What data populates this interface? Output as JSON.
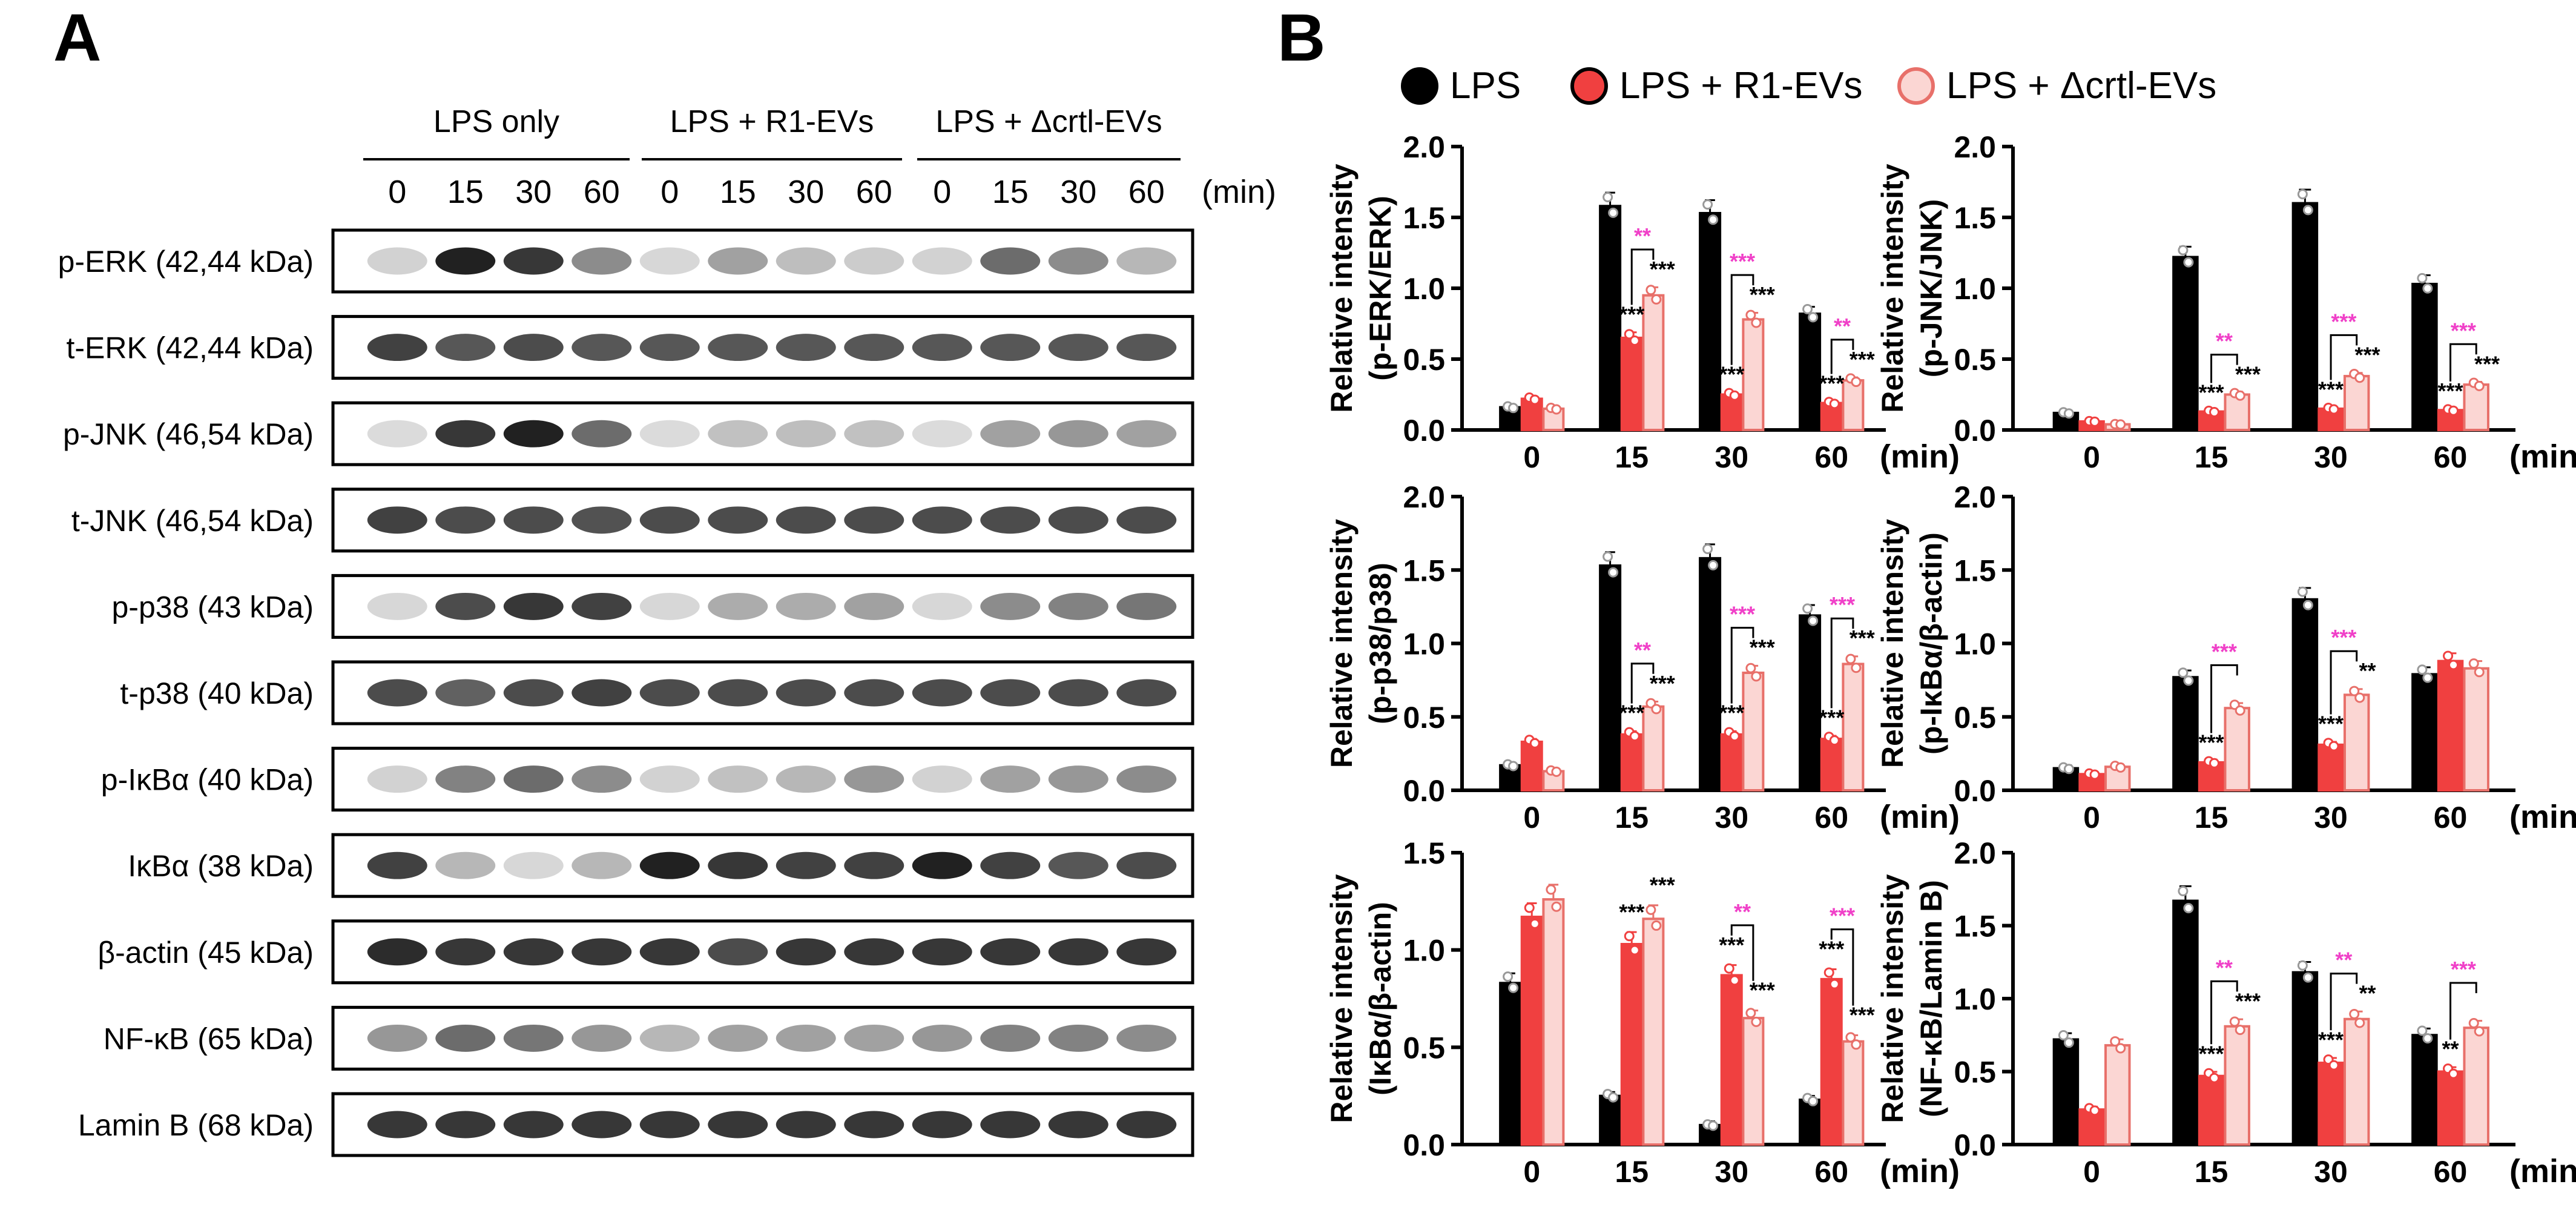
{
  "panel_a": {
    "letter": "A",
    "groups": [
      "LPS only",
      "LPS + R1-EVs",
      "LPS + Δcrtl-EVs"
    ],
    "times": [
      "0",
      "15",
      "30",
      "60"
    ],
    "time_unit": "(min)",
    "blots": [
      {
        "label": "p-ERK (42,44 kDa)",
        "intensity": [
          0.12,
          0.95,
          0.85,
          0.45,
          0.1,
          0.35,
          0.22,
          0.15,
          0.12,
          0.6,
          0.45,
          0.25
        ]
      },
      {
        "label": "t-ERK (42,44 kDa)",
        "intensity": [
          0.8,
          0.7,
          0.75,
          0.7,
          0.7,
          0.7,
          0.7,
          0.7,
          0.7,
          0.7,
          0.7,
          0.7
        ]
      },
      {
        "label": "p-JNK (46,54 kDa)",
        "intensity": [
          0.08,
          0.85,
          0.95,
          0.6,
          0.08,
          0.2,
          0.22,
          0.2,
          0.08,
          0.35,
          0.4,
          0.35
        ]
      },
      {
        "label": "t-JNK (46,54 kDa)",
        "intensity": [
          0.8,
          0.75,
          0.75,
          0.72,
          0.75,
          0.75,
          0.75,
          0.75,
          0.75,
          0.75,
          0.75,
          0.75
        ]
      },
      {
        "label": "p-p38 (43 kDa)",
        "intensity": [
          0.1,
          0.75,
          0.85,
          0.8,
          0.1,
          0.3,
          0.3,
          0.35,
          0.1,
          0.45,
          0.5,
          0.55
        ]
      },
      {
        "label": "t-p38 (40 kDa)",
        "intensity": [
          0.75,
          0.65,
          0.75,
          0.8,
          0.75,
          0.75,
          0.75,
          0.75,
          0.75,
          0.75,
          0.75,
          0.75
        ]
      },
      {
        "label": "p-IκBα (40 kDa)",
        "intensity": [
          0.12,
          0.5,
          0.6,
          0.45,
          0.12,
          0.2,
          0.25,
          0.4,
          0.12,
          0.35,
          0.4,
          0.45
        ]
      },
      {
        "label": "IκBα (38 kDa)",
        "intensity": [
          0.8,
          0.25,
          0.1,
          0.25,
          0.95,
          0.85,
          0.8,
          0.8,
          0.95,
          0.8,
          0.7,
          0.75
        ]
      },
      {
        "label": "β-actin (45 kDa)",
        "intensity": [
          0.9,
          0.85,
          0.85,
          0.85,
          0.85,
          0.75,
          0.85,
          0.85,
          0.85,
          0.85,
          0.85,
          0.85
        ]
      },
      {
        "label": "NF-κB (65 kDa)",
        "intensity": [
          0.4,
          0.6,
          0.55,
          0.4,
          0.25,
          0.35,
          0.35,
          0.35,
          0.4,
          0.5,
          0.5,
          0.45
        ]
      },
      {
        "label": "Lamin B (68 kDa)",
        "intensity": [
          0.85,
          0.85,
          0.85,
          0.85,
          0.85,
          0.85,
          0.85,
          0.85,
          0.85,
          0.85,
          0.85,
          0.85
        ]
      }
    ]
  },
  "panel_b": {
    "letter": "B",
    "legend": [
      "LPS",
      "LPS + R1-EVs",
      "LPS + Δcrtl-EVs"
    ],
    "colors": {
      "lps": "#000000",
      "r1": "#f04040",
      "crtl_fill": "#fbd6d3",
      "crtl_edge": "#e8706a",
      "sig_black": "#000000",
      "sig_magenta": "#f040c8"
    }
  },
  "chart_data": [
    {
      "type": "bar",
      "ylabel": [
        "Relative intensity",
        "(p-ERK/ERK)"
      ],
      "categories": [
        "0",
        "15",
        "30",
        "60"
      ],
      "xunit": "(min)",
      "ylim": [
        0,
        2.0
      ],
      "yticks": [
        "0.0",
        "0.5",
        "1.0",
        "1.5",
        "2.0"
      ],
      "series": [
        {
          "name": "LPS",
          "values": [
            0.16,
            1.58,
            1.53,
            0.82
          ]
        },
        {
          "name": "LPS + R1-EVs",
          "values": [
            0.22,
            0.65,
            0.25,
            0.19
          ]
        },
        {
          "name": "LPS + Δcrtl-EVs",
          "values": [
            0.15,
            0.95,
            0.78,
            0.35
          ]
        }
      ],
      "annotations": [
        {
          "cat": 1,
          "r1": "***",
          "crtl": "***",
          "bracket": "**"
        },
        {
          "cat": 2,
          "r1": "***",
          "crtl": "***",
          "bracket": "***"
        },
        {
          "cat": 3,
          "r1": "***",
          "crtl": "***",
          "bracket": "**"
        }
      ]
    },
    {
      "type": "bar",
      "ylabel": [
        "Relative intensity",
        "(p-JNK/JNK)"
      ],
      "categories": [
        "0",
        "15",
        "30",
        "60"
      ],
      "xunit": "(min)",
      "ylim": [
        0,
        2.0
      ],
      "yticks": [
        "0.0",
        "0.5",
        "1.0",
        "1.5",
        "2.0"
      ],
      "series": [
        {
          "name": "LPS",
          "values": [
            0.12,
            1.22,
            1.6,
            1.03
          ]
        },
        {
          "name": "LPS + R1-EVs",
          "values": [
            0.06,
            0.13,
            0.15,
            0.14
          ]
        },
        {
          "name": "LPS + Δcrtl-EVs",
          "values": [
            0.04,
            0.25,
            0.38,
            0.32
          ]
        }
      ],
      "annotations": [
        {
          "cat": 1,
          "r1": "***",
          "crtl": "***",
          "bracket": "**"
        },
        {
          "cat": 2,
          "r1": "***",
          "crtl": "***",
          "bracket": "***"
        },
        {
          "cat": 3,
          "r1": "***",
          "crtl": "***",
          "bracket": "***"
        }
      ]
    },
    {
      "type": "bar",
      "ylabel": [
        "Relative intensity",
        "(p-p38/p38)"
      ],
      "categories": [
        "0",
        "15",
        "30",
        "60"
      ],
      "xunit": "(min)",
      "ylim": [
        0,
        2.0
      ],
      "yticks": [
        "0.0",
        "0.5",
        "1.0",
        "1.5",
        "2.0"
      ],
      "series": [
        {
          "name": "LPS",
          "values": [
            0.17,
            1.53,
            1.58,
            1.19
          ]
        },
        {
          "name": "LPS + R1-EVs",
          "values": [
            0.33,
            0.38,
            0.38,
            0.35
          ]
        },
        {
          "name": "LPS + Δcrtl-EVs",
          "values": [
            0.13,
            0.57,
            0.8,
            0.86
          ]
        }
      ],
      "annotations": [
        {
          "cat": 1,
          "r1": "***",
          "crtl": "***",
          "bracket": "**"
        },
        {
          "cat": 2,
          "r1": "***",
          "crtl": "***",
          "bracket": "***"
        },
        {
          "cat": 3,
          "r1": "***",
          "crtl": "***",
          "bracket": "***"
        }
      ]
    },
    {
      "type": "bar",
      "ylabel": [
        "Relative intensity",
        "(p-IκBα/β-actin)"
      ],
      "categories": [
        "0",
        "15",
        "30",
        "60"
      ],
      "xunit": "(min)",
      "ylim": [
        0,
        2.0
      ],
      "yticks": [
        "0.0",
        "0.5",
        "1.0",
        "1.5",
        "2.0"
      ],
      "series": [
        {
          "name": "LPS",
          "values": [
            0.15,
            0.77,
            1.3,
            0.79
          ]
        },
        {
          "name": "LPS + R1-EVs",
          "values": [
            0.11,
            0.19,
            0.31,
            0.88
          ]
        },
        {
          "name": "LPS + Δcrtl-EVs",
          "values": [
            0.16,
            0.56,
            0.65,
            0.83
          ]
        }
      ],
      "annotations": [
        {
          "cat": 1,
          "r1": "***",
          "crtl": "",
          "bracket": "***"
        },
        {
          "cat": 2,
          "r1": "***",
          "crtl": "**",
          "bracket": "***"
        }
      ]
    },
    {
      "type": "bar",
      "ylabel": [
        "Relative intensity",
        "(IκBα/β-actin)"
      ],
      "categories": [
        "0",
        "15",
        "30",
        "60"
      ],
      "xunit": "(min)",
      "ylim": [
        0,
        1.5
      ],
      "yticks": [
        "0.0",
        "0.5",
        "1.0",
        "1.5"
      ],
      "series": [
        {
          "name": "LPS",
          "values": [
            0.83,
            0.25,
            0.1,
            0.23
          ]
        },
        {
          "name": "LPS + R1-EVs",
          "values": [
            1.17,
            1.03,
            0.87,
            0.85
          ]
        },
        {
          "name": "LPS + Δcrtl-EVs",
          "values": [
            1.26,
            1.16,
            0.65,
            0.53
          ]
        }
      ],
      "annotations": [
        {
          "cat": 1,
          "r1": "***",
          "crtl": "***",
          "bracket": ""
        },
        {
          "cat": 2,
          "r1": "***",
          "crtl": "***",
          "bracket": "**"
        },
        {
          "cat": 3,
          "r1": "***",
          "crtl": "***",
          "bracket": "***"
        }
      ]
    },
    {
      "type": "bar",
      "ylabel": [
        "Relative intensity",
        "(NF-κB/Lamin B)"
      ],
      "categories": [
        "0",
        "15",
        "30",
        "60"
      ],
      "xunit": "(min)",
      "ylim": [
        0,
        2.0
      ],
      "yticks": [
        "0.0",
        "0.5",
        "1.0",
        "1.5",
        "2.0"
      ],
      "series": [
        {
          "name": "LPS",
          "values": [
            0.72,
            1.67,
            1.18,
            0.75
          ]
        },
        {
          "name": "LPS + R1-EVs",
          "values": [
            0.24,
            0.47,
            0.56,
            0.5
          ]
        },
        {
          "name": "LPS + Δcrtl-EVs",
          "values": [
            0.68,
            0.81,
            0.86,
            0.8
          ]
        }
      ],
      "annotations": [
        {
          "cat": 1,
          "r1": "***",
          "crtl": "***",
          "bracket": "**"
        },
        {
          "cat": 2,
          "r1": "***",
          "crtl": "**",
          "bracket": "**"
        },
        {
          "cat": 3,
          "r1": "**",
          "crtl": "",
          "bracket": "***"
        }
      ]
    }
  ]
}
